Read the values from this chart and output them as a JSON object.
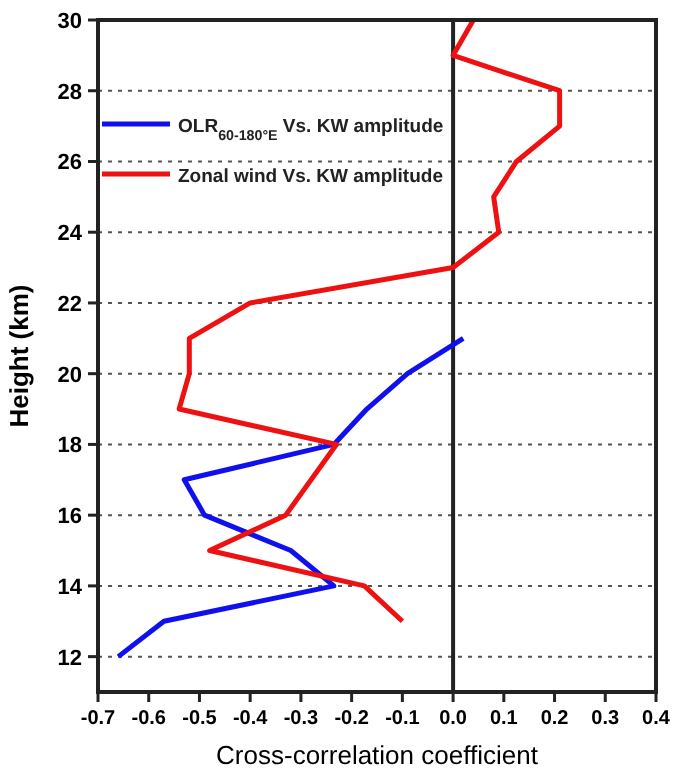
{
  "chart_data": {
    "type": "line",
    "xlabel": "Cross-correlation coefficient",
    "ylabel": "Height (km)",
    "xlim": [
      -0.7,
      0.4
    ],
    "xticks": [
      -0.7,
      -0.6,
      -0.5,
      -0.4,
      -0.3,
      -0.2,
      -0.1,
      {
        "value": 0,
        "label": "0.0"
      },
      0.1,
      0.2,
      0.3,
      0.4
    ],
    "ylim": [
      11,
      30
    ],
    "yticks": [
      12,
      14,
      16,
      18,
      20,
      22,
      24,
      26,
      28,
      30
    ],
    "grid": "y",
    "legend": "top left",
    "ref_lines": [
      {
        "axis": "x",
        "value": 0,
        "color": "#222222"
      }
    ],
    "series": [
      {
        "name": "OLR$_{60-180°E}$ Vs. KW amplitude",
        "color": "#1010ee",
        "x": [
          -0.66,
          -0.57,
          -0.235,
          -0.32,
          -0.49,
          -0.53,
          -0.235,
          -0.17,
          -0.09,
          0.02
        ],
        "values": [
          12,
          13,
          14,
          15,
          16,
          17,
          18,
          19,
          20,
          21
        ]
      },
      {
        "name": "Zonal wind Vs. KW amplitude",
        "color": "#ee1111",
        "x": [
          -0.1,
          -0.175,
          -0.48,
          -0.33,
          -0.23,
          -0.54,
          -0.52,
          -0.52,
          -0.4,
          0.0,
          0.09,
          0.08,
          0.125,
          0.21,
          0.21,
          0.0,
          0.04
        ],
        "values": [
          13,
          14,
          15,
          16,
          18,
          19,
          20,
          21,
          22,
          23,
          24,
          25,
          26,
          27,
          28,
          29,
          30
        ]
      }
    ]
  }
}
